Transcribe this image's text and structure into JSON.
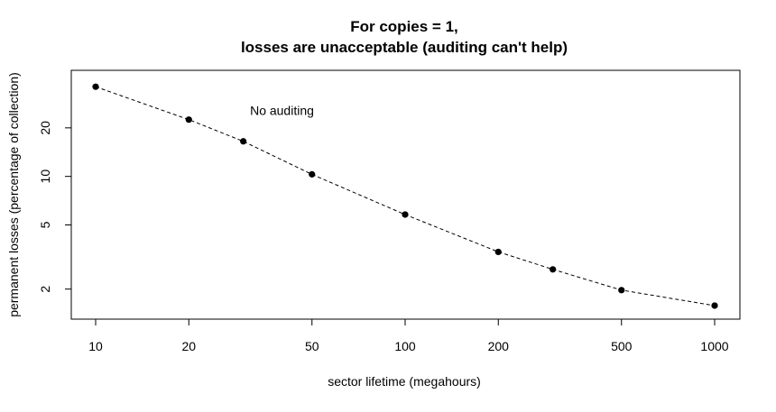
{
  "chart_data": {
    "type": "line",
    "title": [
      "For copies = 1,",
      "losses are unacceptable (auditing can't help)"
    ],
    "xlabel": "sector lifetime (megahours)",
    "ylabel": "permanent losses (percentage of collection)",
    "x_scale": "log",
    "y_scale": "log",
    "xlim": [
      10,
      1000
    ],
    "ylim": [
      1.5,
      40
    ],
    "x_ticks": [
      10,
      20,
      50,
      100,
      200,
      500,
      1000
    ],
    "y_ticks": [
      2,
      5,
      10,
      20
    ],
    "grid": false,
    "series": [
      {
        "x": [
          10,
          20,
          30,
          50,
          100,
          200,
          300,
          500,
          1000
        ],
        "y": [
          36,
          22.5,
          16.5,
          10.3,
          5.8,
          3.4,
          2.65,
          1.97,
          1.58
        ],
        "line_style": "dashed",
        "marker": "filled-circle",
        "color": "#000000"
      }
    ],
    "annotations": [
      {
        "text": "No auditing",
        "x": 40,
        "y": 24
      }
    ]
  }
}
